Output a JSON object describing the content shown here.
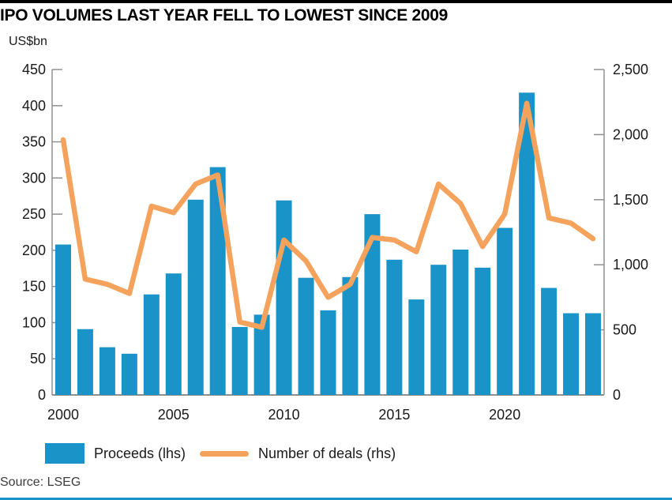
{
  "header": {
    "title": "IPO VOLUMES LAST YEAR FELL TO LOWEST SINCE 2009",
    "unit_label": "US$bn"
  },
  "legend": {
    "proceeds_label": "Proceeds (lhs)",
    "deals_label": "Number of deals (rhs)"
  },
  "source": "Source: LSEG",
  "colors": {
    "bar": "#1a93c8",
    "line": "#f5a35c",
    "axis": "#909090",
    "tick_text": "#1a1a1a",
    "top_rule": "#000000",
    "bottom_rule": "#1a93c8"
  },
  "chart_data": {
    "type": "bar",
    "title": "IPO VOLUMES LAST YEAR FELL TO LOWEST SINCE 2009",
    "xlabel": "",
    "ylabel_left": "US$bn",
    "ylabel_right": "Number of deals",
    "grid": false,
    "legend_position": "bottom",
    "x": [
      2000,
      2001,
      2002,
      2003,
      2004,
      2005,
      2006,
      2007,
      2008,
      2009,
      2010,
      2011,
      2012,
      2013,
      2014,
      2015,
      2016,
      2017,
      2018,
      2019,
      2020,
      2021,
      2022,
      2023,
      2024
    ],
    "series": [
      {
        "name": "Proceeds (lhs)",
        "type": "bar",
        "axis": "left",
        "values": [
          208,
          91,
          66,
          57,
          139,
          168,
          270,
          315,
          94,
          111,
          269,
          162,
          117,
          163,
          250,
          187,
          132,
          180,
          201,
          176,
          231,
          418,
          148,
          113,
          113
        ]
      },
      {
        "name": "Number of deals (rhs)",
        "type": "line",
        "axis": "right",
        "values": [
          1960,
          890,
          850,
          780,
          1450,
          1400,
          1620,
          1690,
          560,
          520,
          1190,
          1030,
          750,
          850,
          1210,
          1190,
          1100,
          1620,
          1470,
          1140,
          1390,
          2240,
          1360,
          1320,
          1200
        ]
      }
    ],
    "left_axis": {
      "min": 0,
      "max": 450,
      "tick_step": 50,
      "tick_labels": [
        "0",
        "50",
        "100",
        "150",
        "200",
        "250",
        "300",
        "350",
        "400",
        "450"
      ]
    },
    "right_axis": {
      "min": 0,
      "max": 2500,
      "tick_step": 500,
      "tick_labels": [
        "0",
        "500",
        "1,000",
        "1,500",
        "2,000",
        "2,500"
      ]
    },
    "x_ticks": [
      {
        "label": "2000",
        "year": 2000
      },
      {
        "label": "2005",
        "year": 2005
      },
      {
        "label": "2010",
        "year": 2010
      },
      {
        "label": "2015",
        "year": 2015
      },
      {
        "label": "2020",
        "year": 2020
      }
    ]
  }
}
